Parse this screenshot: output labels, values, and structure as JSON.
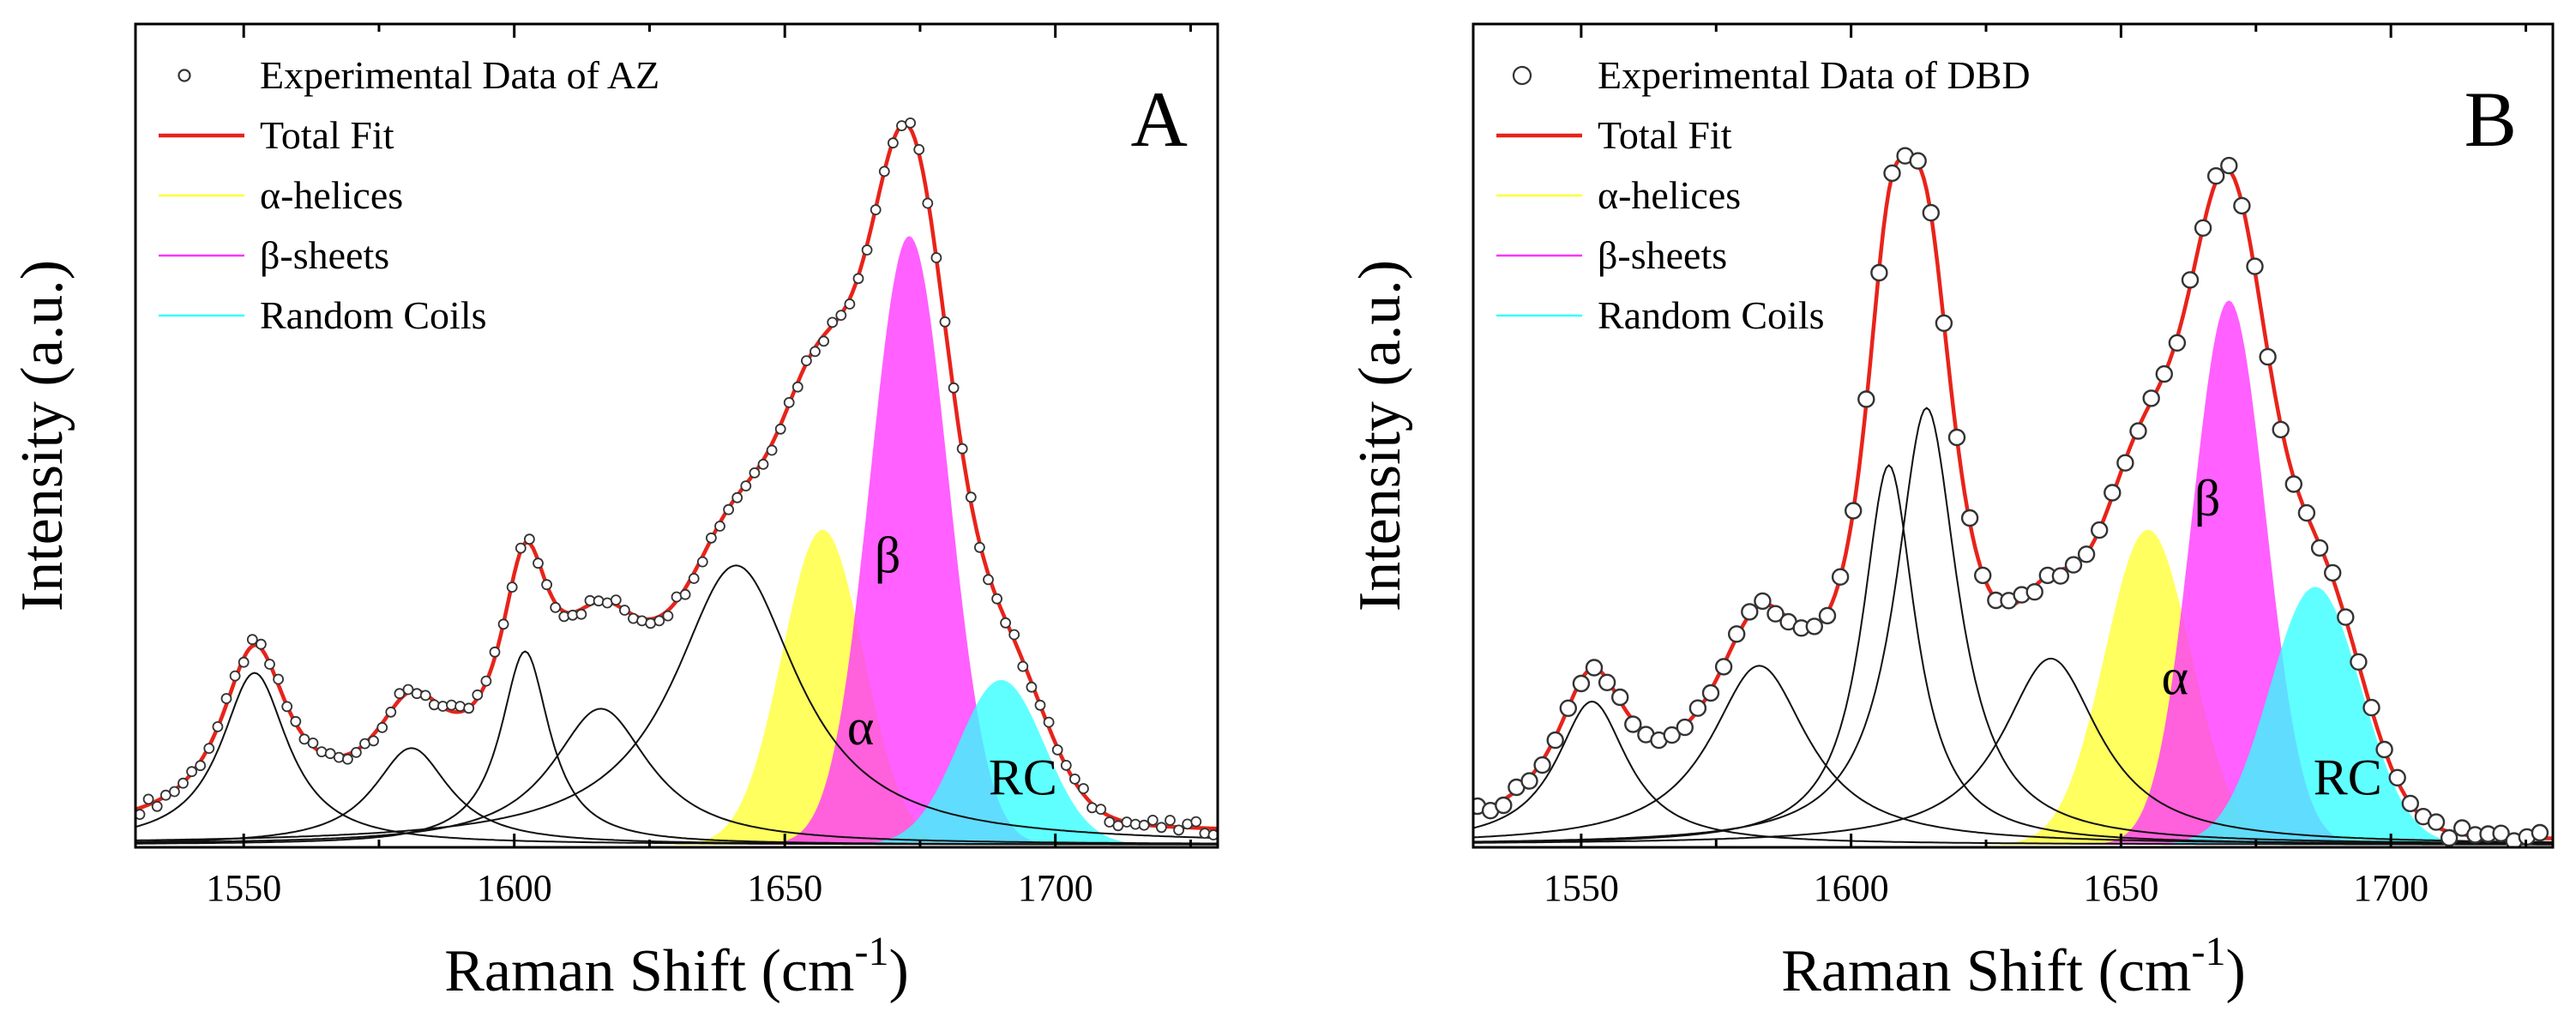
{
  "colors": {
    "total_fit": "#e8231a",
    "alpha": "#ffff33",
    "beta": "#ff33ff",
    "random_coils": "#33ffff",
    "component_line": "#111111",
    "markers": "#333333"
  },
  "chart_data": [
    {
      "type": "line",
      "panel_label": "A",
      "xlabel": "Raman Shift (cm",
      "xlabel_sup": "-1",
      "xlabel_close": ")",
      "ylabel": "Intensity (a.u.)",
      "xlim": [
        1530,
        1730
      ],
      "ylim": [
        0,
        1
      ],
      "x_ticks": [
        1550,
        1600,
        1650,
        1700
      ],
      "legend": [
        {
          "label": "Experimental Data of AZ",
          "kind": "marker"
        },
        {
          "label": "Total Fit",
          "kind": "total"
        },
        {
          "label": "α-helices",
          "kind": "alpha"
        },
        {
          "label": "β-sheets",
          "kind": "beta"
        },
        {
          "label": "Random Coils",
          "kind": "rc"
        }
      ],
      "baseline": 0.01,
      "components": [
        {
          "center": 1552,
          "amplitude": 0.24,
          "width": 7.5,
          "shape": "lorentzian"
        },
        {
          "center": 1581,
          "amplitude": 0.135,
          "width": 8.5,
          "shape": "lorentzian"
        },
        {
          "center": 1602,
          "amplitude": 0.27,
          "width": 5.5,
          "shape": "lorentzian"
        },
        {
          "center": 1616,
          "amplitude": 0.19,
          "width": 11,
          "shape": "lorentzian"
        },
        {
          "center": 1641,
          "amplitude": 0.39,
          "width": 14,
          "shape": "lorentzian"
        }
      ],
      "assigned_bands": [
        {
          "label": "α",
          "class": "alpha",
          "center": 1657,
          "amplitude": 0.44,
          "sigma": 7.5
        },
        {
          "label": "β",
          "class": "beta",
          "center": 1673,
          "amplitude": 0.85,
          "sigma": 7.2
        },
        {
          "label": "RC",
          "class": "rc",
          "center": 1690,
          "amplitude": 0.23,
          "sigma": 8.0
        }
      ],
      "peak_labels": [
        {
          "text": "β",
          "x": 1669,
          "y": 0.38
        },
        {
          "text": "α",
          "x": 1664,
          "y": 0.14
        },
        {
          "text": "RC",
          "x": 1694,
          "y": 0.07
        }
      ],
      "marker_size": 5.5,
      "marker_spacing": 1.6
    },
    {
      "type": "line",
      "panel_label": "B",
      "xlabel": "Raman Shift (cm",
      "xlabel_sup": "-1",
      "xlabel_close": ")",
      "ylabel": "Intensity (a.u.)",
      "xlim": [
        1530,
        1730
      ],
      "ylim": [
        0,
        1
      ],
      "x_ticks": [
        1550,
        1600,
        1650,
        1700
      ],
      "legend": [
        {
          "label": "Experimental Data of DBD",
          "kind": "marker"
        },
        {
          "label": "Total Fit",
          "kind": "total"
        },
        {
          "label": "α-helices",
          "kind": "alpha"
        },
        {
          "label": "β-sheets",
          "kind": "beta"
        },
        {
          "label": "Random Coils",
          "kind": "rc"
        }
      ],
      "baseline": 0.0,
      "components": [
        {
          "center": 1552,
          "amplitude": 0.2,
          "width": 8,
          "shape": "lorentzian"
        },
        {
          "center": 1583,
          "amplitude": 0.25,
          "width": 11,
          "shape": "lorentzian"
        },
        {
          "center": 1607,
          "amplitude": 0.53,
          "width": 6,
          "shape": "lorentzian"
        },
        {
          "center": 1614,
          "amplitude": 0.61,
          "width": 7,
          "shape": "lorentzian"
        },
        {
          "center": 1637,
          "amplitude": 0.26,
          "width": 11,
          "shape": "lorentzian"
        }
      ],
      "assigned_bands": [
        {
          "label": "α",
          "class": "alpha",
          "center": 1655,
          "amplitude": 0.44,
          "sigma": 8.0
        },
        {
          "label": "β",
          "class": "beta",
          "center": 1670,
          "amplitude": 0.76,
          "sigma": 6.8
        },
        {
          "label": "RC",
          "class": "rc",
          "center": 1686,
          "amplitude": 0.36,
          "sigma": 8.5
        }
      ],
      "peak_labels": [
        {
          "text": "β",
          "x": 1666,
          "y": 0.46
        },
        {
          "text": "α",
          "x": 1660,
          "y": 0.21
        },
        {
          "text": "RC",
          "x": 1692,
          "y": 0.07
        }
      ],
      "marker_size": 9,
      "marker_spacing": 2.4
    }
  ]
}
